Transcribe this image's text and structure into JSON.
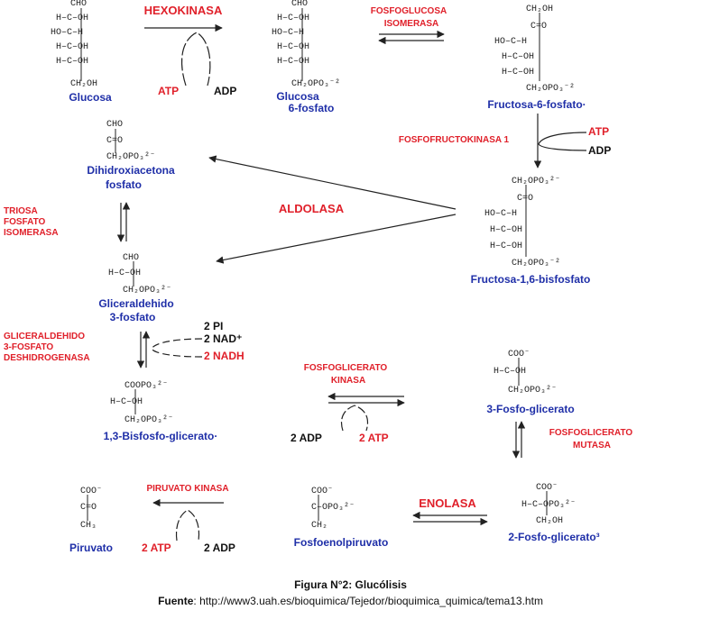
{
  "colors": {
    "compound": "#1f2fa8",
    "enzyme": "#e0202a",
    "cofactor": "#111111"
  },
  "compounds": {
    "glucosa": "Glucosa",
    "g6p_1": "Glucosa",
    "g6p_2": "6-fosfato",
    "f6p": "Fructosa-6-fosfato·",
    "dhap_1": "Dihidroxiacetona",
    "dhap_2": "fosfato",
    "f16bp": "Fructosa-1,6-bisfosfato",
    "g3p_1": "Gliceraldehido",
    "g3p_2": "3-fosfato",
    "bpg": "1,3-Bisfosfo-glicerato·",
    "pg3": "3-Fosfo-glicerato",
    "pg2": "2-Fosfo-glicerato³",
    "pep": "Fosfoenolpiruvato",
    "piruvato": "Piruvato"
  },
  "enzymes": {
    "hexokinasa": "HEXOKINASA",
    "fgi_1": "FOSFOGLUCOSA",
    "fgi_2": "ISOMERASA",
    "pfk": "FOSFOFRUCTOKINASA 1",
    "aldolasa": "ALDOLASA",
    "tim_1": "TRIOSA",
    "tim_2": "FOSFATO",
    "tim_3": "ISOMERASA",
    "gapdh_1": "GLICERALDEHIDO",
    "gapdh_2": "3-FOSFATO",
    "gapdh_3": "DESHIDROGENASA",
    "pgk_1": "FOSFOGLICERATO",
    "pgk_2": "KINASA",
    "pgm_1": "FOSFOGLICERATO",
    "pgm_2": "MUTASA",
    "enolasa": "ENOLASA",
    "pk": "PIRUVATO KINASA"
  },
  "cofactors": {
    "hk_atp": "ATP",
    "hk_adp": "ADP",
    "pfk_atp": "ATP",
    "pfk_adp": "ADP",
    "gapdh_pi": "2 PI",
    "gapdh_nad": "2 NAD⁺",
    "gapdh_nadh": "2 NADH",
    "pgk_adp": "2 ADP",
    "pgk_atp": "2 ATP",
    "pk_atp": "2 ATP",
    "pk_adp": "2 ADP"
  },
  "structures": {
    "glucosa": [
      "CHO",
      "H–C–OH",
      "HO–C–H",
      "H–C–OH",
      "H–C–OH",
      "CH₂OH"
    ],
    "g6p": [
      "CHO",
      "H–C–OH",
      "HO–C–H",
      "H–C–OH",
      "H–C–OH",
      "CH₂OPO₃⁻²"
    ],
    "f6p": [
      "CH₂OH",
      "C=O",
      "HO–C–H",
      "H–C–OH",
      "H–C–OH",
      "CH₂OPO₃⁻²"
    ],
    "dhap": [
      "CHO",
      "C=O",
      "CH₂OPO₃²⁻"
    ],
    "f16bp": [
      "CH₂OPO₃²⁻",
      "C=O",
      "HO–C–H",
      "H–C–OH",
      "H–C–OH",
      "CH₂OPO₃⁻²"
    ],
    "g3p": [
      "CHO",
      "H–C–OH",
      "CH₂OPO₃²⁻"
    ],
    "bpg": [
      "COOPO₃²⁻",
      "H–C–OH",
      "CH₂OPO₃²⁻"
    ],
    "pg3": [
      "COO⁻",
      "H–C–OH",
      "CH₂OPO₃²⁻"
    ],
    "pg2": [
      "COO⁻",
      "H–C–OPO₃²⁻",
      "CH₂OH"
    ],
    "pep": [
      "COO⁻",
      "C–OPO₃²⁻",
      "CH₂"
    ],
    "piruvato": [
      "COO⁻",
      "C=O",
      "CH₃"
    ]
  },
  "caption": {
    "title": "Figura N°2: Glucólisis",
    "source_label": "Fuente",
    "source_text": ": http://www3.uah.es/bioquimica/Tejedor/bioquimica_quimica/tema13.htm"
  }
}
